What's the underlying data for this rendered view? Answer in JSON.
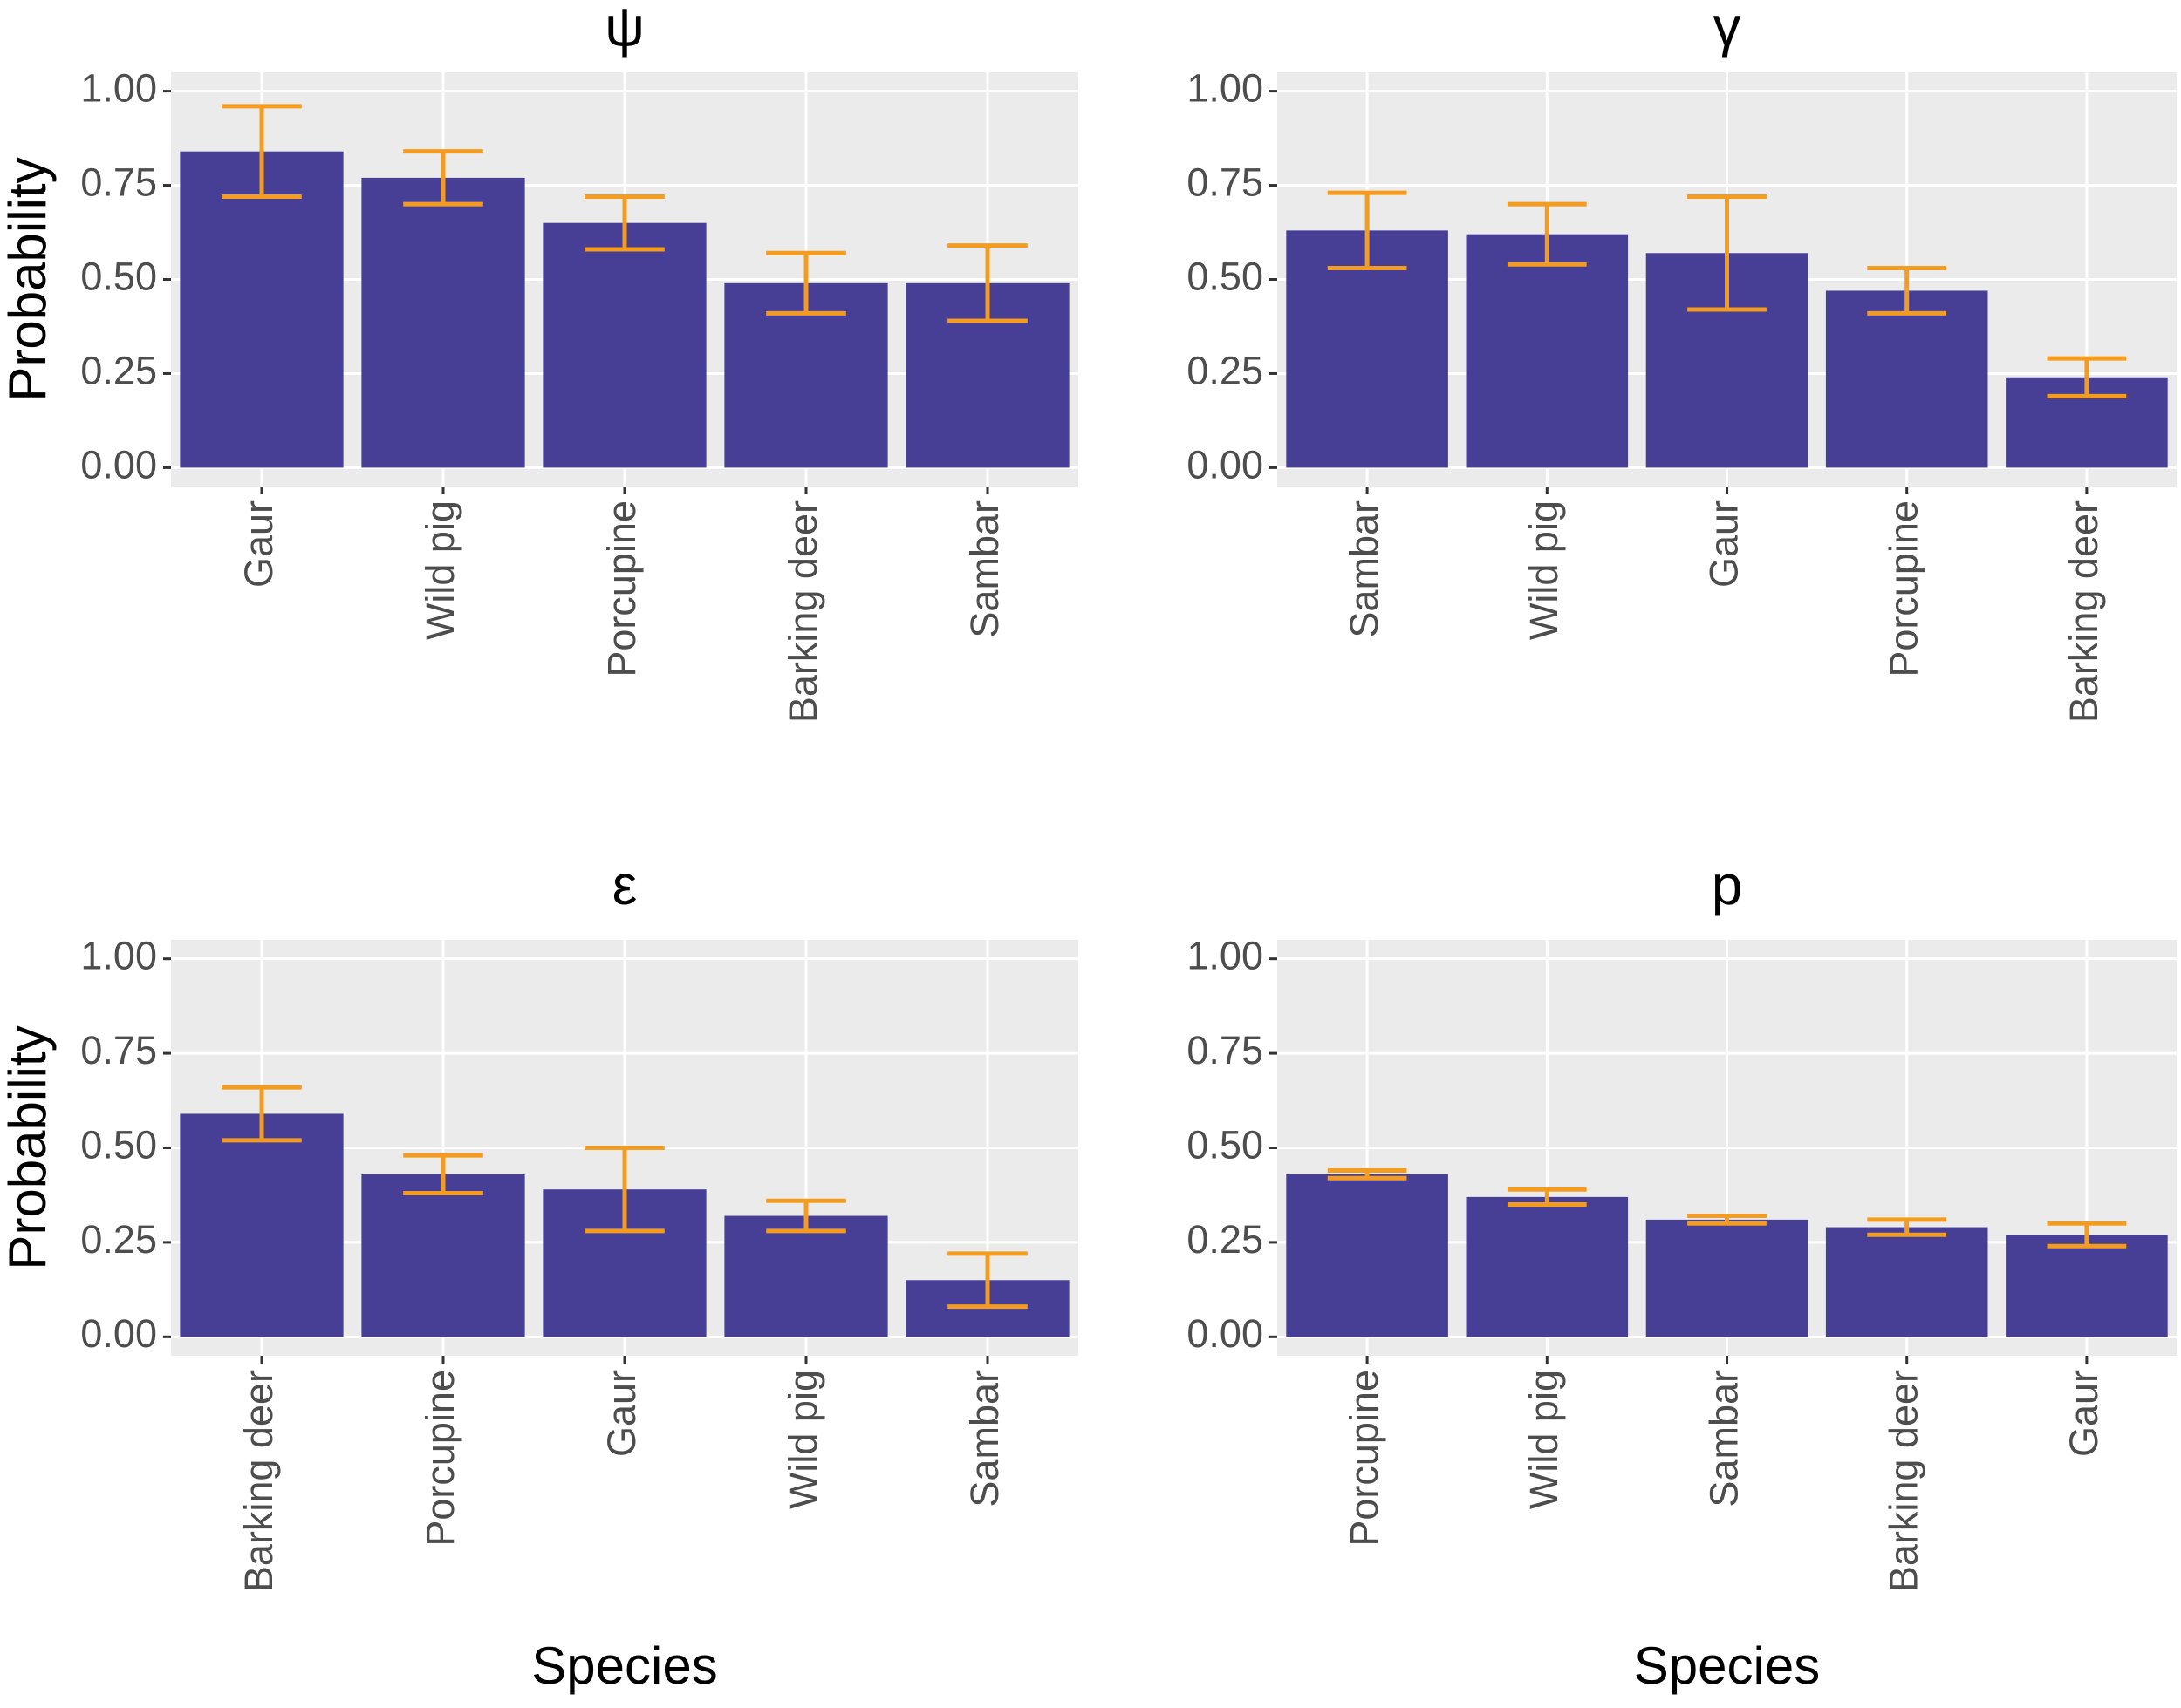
{
  "chart_data": [
    {
      "type": "bar",
      "title": "ψ",
      "ylabel": "Probability",
      "categories": [
        "Gaur",
        "Wild pig",
        "Porcupine",
        "Barking deer",
        "Sambar"
      ],
      "values": [
        0.84,
        0.77,
        0.65,
        0.49,
        0.49
      ],
      "lower": [
        0.72,
        0.7,
        0.58,
        0.41,
        0.39
      ],
      "upper": [
        0.96,
        0.84,
        0.72,
        0.57,
        0.59
      ],
      "color": "#463f95",
      "error_color": "#f39c1f",
      "ylim": [
        -0.05,
        1.05
      ],
      "yticks": [
        {
          "value": 0,
          "label": "0.00"
        },
        {
          "value": 0.25,
          "label": "0.25"
        },
        {
          "value": 0.5,
          "label": "0.50"
        },
        {
          "value": 0.75,
          "label": "0.75"
        },
        {
          "value": 1,
          "label": "1.00"
        }
      ],
      "grid": true
    },
    {
      "type": "bar",
      "title": "γ",
      "categories": [
        "Sambar",
        "Wild pig",
        "Gaur",
        "Porcupine",
        "Barking deer"
      ],
      "values": [
        0.63,
        0.62,
        0.57,
        0.47,
        0.24
      ],
      "lower": [
        0.53,
        0.54,
        0.42,
        0.41,
        0.19
      ],
      "upper": [
        0.73,
        0.7,
        0.72,
        0.53,
        0.29
      ],
      "color": "#463f95",
      "error_color": "#f39c1f",
      "ylim": [
        -0.05,
        1.05
      ],
      "yticks": [
        {
          "value": 0,
          "label": "0.00"
        },
        {
          "value": 0.25,
          "label": "0.25"
        },
        {
          "value": 0.5,
          "label": "0.50"
        },
        {
          "value": 0.75,
          "label": "0.75"
        },
        {
          "value": 1,
          "label": "1.00"
        }
      ],
      "grid": true
    },
    {
      "type": "bar",
      "title": "ε",
      "ylabel": "Probability",
      "xlabel": "Species",
      "categories": [
        "Barking deer",
        "Porcupine",
        "Gaur",
        "Wild pig",
        "Sambar"
      ],
      "values": [
        0.59,
        0.43,
        0.39,
        0.32,
        0.15
      ],
      "lower": [
        0.52,
        0.38,
        0.28,
        0.28,
        0.08
      ],
      "upper": [
        0.66,
        0.48,
        0.5,
        0.36,
        0.22
      ],
      "color": "#463f95",
      "error_color": "#f39c1f",
      "ylim": [
        -0.05,
        1.05
      ],
      "yticks": [
        {
          "value": 0,
          "label": "0.00"
        },
        {
          "value": 0.25,
          "label": "0.25"
        },
        {
          "value": 0.5,
          "label": "0.50"
        },
        {
          "value": 0.75,
          "label": "0.75"
        },
        {
          "value": 1,
          "label": "1.00"
        }
      ],
      "grid": true
    },
    {
      "type": "bar",
      "title": "p",
      "xlabel": "Species",
      "categories": [
        "Porcupine",
        "Wild pig",
        "Sambar",
        "Barking deer",
        "Gaur"
      ],
      "values": [
        0.43,
        0.37,
        0.31,
        0.29,
        0.27
      ],
      "lower": [
        0.42,
        0.35,
        0.3,
        0.27,
        0.24
      ],
      "upper": [
        0.44,
        0.39,
        0.32,
        0.31,
        0.3
      ],
      "color": "#463f95",
      "error_color": "#f39c1f",
      "ylim": [
        -0.05,
        1.05
      ],
      "yticks": [
        {
          "value": 0,
          "label": "0.00"
        },
        {
          "value": 0.25,
          "label": "0.25"
        },
        {
          "value": 0.5,
          "label": "0.50"
        },
        {
          "value": 0.75,
          "label": "0.75"
        },
        {
          "value": 1,
          "label": "1.00"
        }
      ],
      "grid": true
    }
  ]
}
